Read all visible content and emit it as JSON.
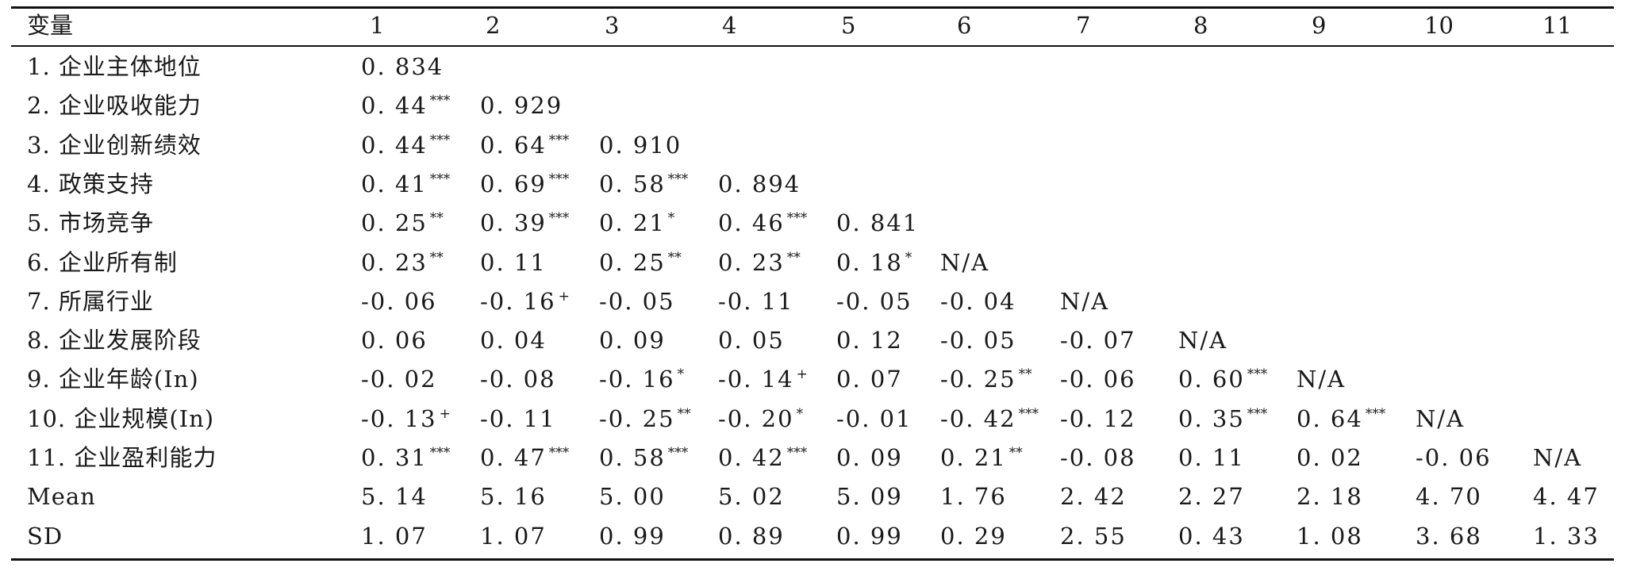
{
  "table": {
    "columns": [
      "变量",
      "1",
      "2",
      "3",
      "4",
      "5",
      "6",
      "7",
      "8",
      "9",
      "10",
      "11"
    ],
    "rows": [
      {
        "label": "1. 企业主体地位",
        "cells": [
          {
            "v": "0. 834",
            "s": ""
          }
        ]
      },
      {
        "label": "2. 企业吸收能力",
        "cells": [
          {
            "v": "0. 44",
            "s": "***"
          },
          {
            "v": "0. 929",
            "s": ""
          }
        ]
      },
      {
        "label": "3. 企业创新绩效",
        "cells": [
          {
            "v": "0. 44",
            "s": "***"
          },
          {
            "v": "0. 64",
            "s": "***"
          },
          {
            "v": "0. 910",
            "s": ""
          }
        ]
      },
      {
        "label": "4. 政策支持",
        "cells": [
          {
            "v": "0. 41",
            "s": "***"
          },
          {
            "v": "0. 69",
            "s": "***"
          },
          {
            "v": "0. 58",
            "s": "***"
          },
          {
            "v": "0. 894",
            "s": ""
          }
        ]
      },
      {
        "label": "5. 市场竞争",
        "cells": [
          {
            "v": "0. 25",
            "s": "**"
          },
          {
            "v": "0. 39",
            "s": "***"
          },
          {
            "v": "0. 21",
            "s": "*"
          },
          {
            "v": "0. 46",
            "s": "***"
          },
          {
            "v": "0. 841",
            "s": ""
          }
        ]
      },
      {
        "label": "6. 企业所有制",
        "cells": [
          {
            "v": "0. 23",
            "s": "**"
          },
          {
            "v": "0. 11",
            "s": ""
          },
          {
            "v": "0. 25",
            "s": "**"
          },
          {
            "v": "0. 23",
            "s": "**"
          },
          {
            "v": "0. 18",
            "s": "*"
          },
          {
            "v": "N/A",
            "s": ""
          }
        ]
      },
      {
        "label": "7. 所属行业",
        "cells": [
          {
            "v": "-0. 06",
            "s": ""
          },
          {
            "v": "-0. 16",
            "s": "+"
          },
          {
            "v": "-0. 05",
            "s": ""
          },
          {
            "v": "-0. 11",
            "s": ""
          },
          {
            "v": "-0. 05",
            "s": ""
          },
          {
            "v": "-0. 04",
            "s": ""
          },
          {
            "v": "N/A",
            "s": ""
          }
        ]
      },
      {
        "label": "8. 企业发展阶段",
        "cells": [
          {
            "v": "0. 06",
            "s": ""
          },
          {
            "v": "0. 04",
            "s": ""
          },
          {
            "v": "0. 09",
            "s": ""
          },
          {
            "v": "0. 05",
            "s": ""
          },
          {
            "v": "0. 12",
            "s": ""
          },
          {
            "v": "-0. 05",
            "s": ""
          },
          {
            "v": "-0. 07",
            "s": ""
          },
          {
            "v": "N/A",
            "s": ""
          }
        ]
      },
      {
        "label": "9. 企业年龄(In)",
        "cells": [
          {
            "v": "-0. 02",
            "s": ""
          },
          {
            "v": "-0. 08",
            "s": ""
          },
          {
            "v": "-0. 16",
            "s": "*"
          },
          {
            "v": "-0. 14",
            "s": "+"
          },
          {
            "v": "0. 07",
            "s": ""
          },
          {
            "v": "-0. 25",
            "s": "**"
          },
          {
            "v": "-0. 06",
            "s": ""
          },
          {
            "v": "0. 60",
            "s": "***"
          },
          {
            "v": "N/A",
            "s": ""
          }
        ]
      },
      {
        "label": "10. 企业规模(In)",
        "cells": [
          {
            "v": "-0. 13",
            "s": "+"
          },
          {
            "v": "-0. 11",
            "s": ""
          },
          {
            "v": "-0. 25",
            "s": "**"
          },
          {
            "v": "-0. 20",
            "s": "*"
          },
          {
            "v": "-0. 01",
            "s": ""
          },
          {
            "v": "-0. 42",
            "s": "***"
          },
          {
            "v": "-0. 12",
            "s": ""
          },
          {
            "v": "0. 35",
            "s": "***"
          },
          {
            "v": "0. 64",
            "s": "***"
          },
          {
            "v": "N/A",
            "s": ""
          }
        ]
      },
      {
        "label": "11. 企业盈利能力",
        "cells": [
          {
            "v": "0. 31",
            "s": "***"
          },
          {
            "v": "0. 47",
            "s": "***"
          },
          {
            "v": "0. 58",
            "s": "***"
          },
          {
            "v": "0. 42",
            "s": "***"
          },
          {
            "v": "0. 09",
            "s": ""
          },
          {
            "v": "0. 21",
            "s": "**"
          },
          {
            "v": "-0. 08",
            "s": ""
          },
          {
            "v": "0. 11",
            "s": ""
          },
          {
            "v": "0. 02",
            "s": ""
          },
          {
            "v": "-0. 06",
            "s": ""
          },
          {
            "v": "N/A",
            "s": ""
          }
        ]
      },
      {
        "label": "Mean",
        "cells": [
          {
            "v": "5. 14",
            "s": ""
          },
          {
            "v": "5. 16",
            "s": ""
          },
          {
            "v": "5. 00",
            "s": ""
          },
          {
            "v": "5. 02",
            "s": ""
          },
          {
            "v": "5. 09",
            "s": ""
          },
          {
            "v": "1. 76",
            "s": ""
          },
          {
            "v": "2. 42",
            "s": ""
          },
          {
            "v": "2. 27",
            "s": ""
          },
          {
            "v": "2. 18",
            "s": ""
          },
          {
            "v": "4. 70",
            "s": ""
          },
          {
            "v": "4. 47",
            "s": ""
          }
        ]
      },
      {
        "label": "SD",
        "cells": [
          {
            "v": "1. 07",
            "s": ""
          },
          {
            "v": "1. 07",
            "s": ""
          },
          {
            "v": "0. 99",
            "s": ""
          },
          {
            "v": "0. 89",
            "s": ""
          },
          {
            "v": "0. 99",
            "s": ""
          },
          {
            "v": "0. 29",
            "s": ""
          },
          {
            "v": "2. 55",
            "s": ""
          },
          {
            "v": "0. 43",
            "s": ""
          },
          {
            "v": "1. 08",
            "s": ""
          },
          {
            "v": "3. 68",
            "s": ""
          },
          {
            "v": "1. 33",
            "s": ""
          }
        ]
      }
    ]
  }
}
